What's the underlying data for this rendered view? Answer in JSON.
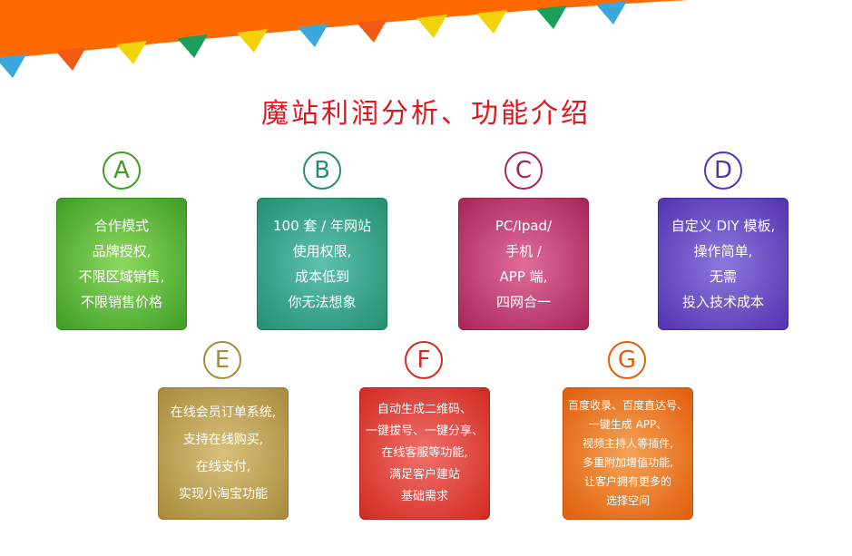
{
  "title": "魔站利润分析、功能介绍",
  "colors": {
    "banner": "#ff6a00",
    "title": "#e4151d",
    "flags": [
      "#3aa8dc",
      "#f15a16",
      "#f2d20a",
      "#1aa05a"
    ]
  },
  "sections": [
    {
      "letter": "A",
      "color": "#3e9e25",
      "lines": [
        "合作模式",
        "品牌授权,",
        "不限区域销售,",
        "不限销售价格"
      ]
    },
    {
      "letter": "B",
      "color": "#258e72",
      "lines": [
        "100 套 / 年网站",
        "使用权限,",
        "成本低到",
        "你无法想象"
      ]
    },
    {
      "letter": "C",
      "color": "#a8245a",
      "lines": [
        "PC/Ipad/",
        "手机 /",
        "APP 端,",
        "四网合一"
      ]
    },
    {
      "letter": "D",
      "color": "#5333b0",
      "lines": [
        "自定义 DIY 模板,",
        "操作简单,",
        "无需",
        "投入技术成本"
      ]
    },
    {
      "letter": "E",
      "color": "#a98a3c",
      "lines": [
        "在线会员订单系统,",
        "支持在线购买,",
        "在线支付,",
        "实现小淘宝功能"
      ]
    },
    {
      "letter": "F",
      "color": "#d12a21",
      "lines": [
        "自动生成二维码、",
        "一键拔号、一键分享、",
        "在线客服等功能,",
        "满足客户建站",
        "基础需求"
      ]
    },
    {
      "letter": "G",
      "color": "#e05d0b",
      "lines": [
        "百度收录、百度直达号、",
        "一键生成 APP、",
        "视频主持人等插件,",
        "多重附加增值功能,",
        "让客户拥有更多的",
        "选择空间"
      ]
    }
  ]
}
